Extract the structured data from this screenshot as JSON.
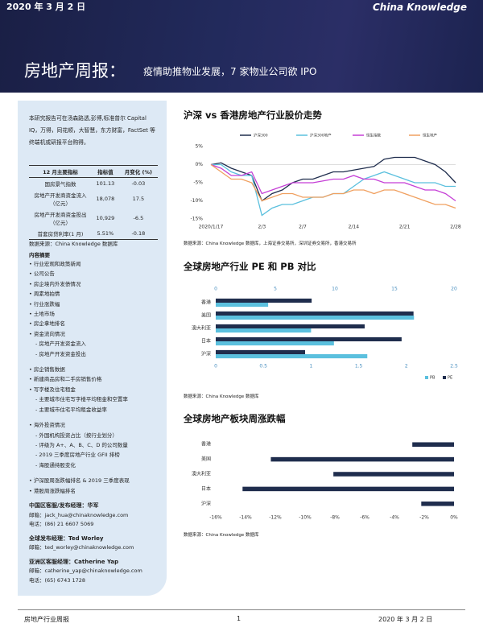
{
  "header": {
    "date": "2020 年 3 月 2 日",
    "logo": "China Knowledge",
    "title": "房地产周报：",
    "subtitle": "疫情助推物业发展，7 家物业公司欲 IPO"
  },
  "sidebar": {
    "intro": "本研究报告可在汤森路透,彭博,标准普尔 Capital IQ，万得，同花顺，大智慧，东方财富，FactSet 等终端机或研报平台购得。",
    "table": {
      "header": [
        "12 月主要指标",
        "指标值",
        "月变化 (%)"
      ],
      "rows": [
        [
          "国房景气指数",
          "101.13",
          "-0.03"
        ],
        [
          "房地产开发商资金流入（亿元）",
          "18,078",
          "17.5"
        ],
        [
          "房地产开发商资金投出（亿元）",
          "10,929",
          "-6.5"
        ],
        [
          "首套房贷利率(1 月)",
          "5.51%",
          "-0.18"
        ]
      ]
    },
    "source": "数据来源：China Knowledge 数据库",
    "contents": {
      "title": "内容摘要",
      "groups": [
        [
          {
            "text": "行业宏观和政策新闻"
          },
          {
            "text": "公司公告"
          },
          {
            "text": "房企境内外发债情况"
          },
          {
            "text": "周素地拍情"
          },
          {
            "text": "行业涨跌幅"
          },
          {
            "text": "土地市场"
          },
          {
            "text": "房企拿地排名"
          },
          {
            "text": "资金流向情况",
            "subitems": [
              "房地产开发资金流入",
              "房地产开发资金投出"
            ]
          }
        ],
        [
          {
            "text": "房企销售数据"
          },
          {
            "text": "新建商品房和二手房销售价格"
          },
          {
            "text": "写字楼及住宅租金",
            "subitems": [
              "主要城市住宅写字楼平均租金和空置率",
              "主要城市住宅平均租金收益率"
            ]
          }
        ],
        [
          {
            "text": "海外投资情况",
            "subitems": [
              "外国机构投资占比（按行业划分）",
              "评级为 A+、A、B、C、D 的公司数量",
              "2019 三季度房地产行业 GFII 排榜",
              "海股通持股变化"
            ]
          }
        ],
        [
          {
            "text": "沪深股周涨跌幅排名 & 2019 三季度表现"
          },
          {
            "text": "港股周涨跌幅排名"
          }
        ]
      ]
    },
    "contacts": [
      {
        "role": "中国区客服/发布经理：华军",
        "lines": [
          "邮箱：jack_hua@chinaknowledge.com",
          "电话：(86) 21 6607 5069"
        ]
      },
      {
        "role": "全球发布经理：Ted Worley",
        "lines": [
          "邮箱：ted_worley@chinaknowledge.com"
        ]
      },
      {
        "role": "亚洲区客服经理：Catherine Yap",
        "lines": [
          "邮箱：catherine_yap@chinaknowledge.com",
          "电话：(65) 6743 1728"
        ]
      }
    ]
  },
  "chart_data": [
    {
      "type": "line",
      "title": "沪深 vs 香港房地产行业股价走势",
      "source": "数据来源：China Knowledge 数据库，上海证券交易所，深圳证券交易所，香港交易所",
      "categories": [
        "2020/1/17",
        null,
        null,
        null,
        null,
        "2/3",
        null,
        null,
        null,
        "2/7",
        null,
        null,
        null,
        null,
        "2/14",
        null,
        null,
        null,
        null,
        "2/21",
        null,
        null,
        null,
        null,
        "2/28"
      ],
      "ylim": [
        -15,
        5
      ],
      "yticks": [
        {
          "value": 5,
          "label": "5%"
        },
        {
          "value": 0,
          "label": "0%"
        },
        {
          "value": -5,
          "label": "-5%"
        },
        {
          "value": -10,
          "label": "-10%"
        },
        {
          "value": -15,
          "label": "-15%"
        }
      ],
      "series": [
        {
          "name": "沪深300",
          "color": "#1f2d4d",
          "values": [
            0,
            0.5,
            -1,
            -2,
            -3,
            -10,
            -8,
            -7,
            -5,
            -4,
            -4,
            -3,
            -2,
            -2,
            -1.5,
            -1,
            -0.5,
            1.5,
            2,
            2,
            2,
            1,
            0,
            -2,
            -5
          ]
        },
        {
          "name": "沪深300地产",
          "color": "#5bc0de",
          "values": [
            0,
            0,
            -2,
            -3,
            -3,
            -14,
            -12,
            -11,
            -11,
            -10,
            -9,
            -9,
            -8,
            -8,
            -6,
            -4,
            -3,
            -2,
            -3,
            -4,
            -5,
            -5,
            -5,
            -6,
            -6
          ]
        },
        {
          "name": "恒生指数",
          "color": "#c53fd6",
          "values": [
            0,
            -1,
            -3,
            -3,
            -2,
            -8,
            -7,
            -6,
            -5,
            -5,
            -5,
            -4.5,
            -4,
            -4,
            -3,
            -4,
            -4,
            -5,
            -5,
            -5,
            -6,
            -7,
            -7,
            -8,
            -10
          ]
        },
        {
          "name": "恒生地产",
          "color": "#f0a060",
          "values": [
            0,
            -2,
            -4,
            -4,
            -5,
            -10,
            -9,
            -8,
            -8,
            -9,
            -9,
            -9,
            -8,
            -8,
            -7,
            -7,
            -8,
            -7,
            -7,
            -8,
            -9,
            -10,
            -11,
            -11,
            -12
          ]
        }
      ]
    },
    {
      "type": "hbar",
      "title": "全球房地产行业 PE 和 PB 对比",
      "source": "数据来源：China Knowledge 数据库",
      "categories": [
        "香港",
        "美国",
        "澳大利亚",
        "日本",
        "沪深"
      ],
      "xlim": [
        0,
        2.5
      ],
      "xticks": [
        0,
        0.5,
        1,
        1.5,
        2,
        2.5
      ],
      "x2lim": [
        0,
        20
      ],
      "x2ticks": [
        0,
        5,
        10,
        15,
        20
      ],
      "series": [
        {
          "name": "PB",
          "color": "#5bc0de",
          "values": [
            0.55,
            2.08,
            1.0,
            1.24,
            1.59
          ]
        },
        {
          "name": "PE",
          "color": "#1f2d4d",
          "axis": "x2",
          "values": [
            8.05,
            16.6,
            12.5,
            15.6,
            7.5
          ]
        }
      ]
    },
    {
      "type": "hbar",
      "title": "全球房地产板块周涨跌幅",
      "source": "数据来源：China Knowledge 数据库",
      "categories": [
        "香港",
        "美国",
        "澳大利亚",
        "日本",
        "沪深"
      ],
      "xlim": [
        -16,
        0
      ],
      "xticks": [
        {
          "value": -16,
          "label": "-16%"
        },
        {
          "value": -14,
          "label": "-14%"
        },
        {
          "value": -12,
          "label": "-12%"
        },
        {
          "value": -10,
          "label": "-10%"
        },
        {
          "value": -8,
          "label": "-8%"
        },
        {
          "value": -6,
          "label": "-6%"
        },
        {
          "value": -4,
          "label": "-4%"
        },
        {
          "value": -2,
          "label": "-2%"
        },
        {
          "value": 0,
          "label": "0%"
        }
      ],
      "series": [
        {
          "color": "#1f2d4d",
          "values": [
            -2.8,
            -12.3,
            -8.1,
            -14.2,
            -2.2
          ]
        }
      ]
    }
  ],
  "footer": {
    "left": "房地产行业周报",
    "page": "1",
    "date": "2020 年 3 月 2 日"
  }
}
